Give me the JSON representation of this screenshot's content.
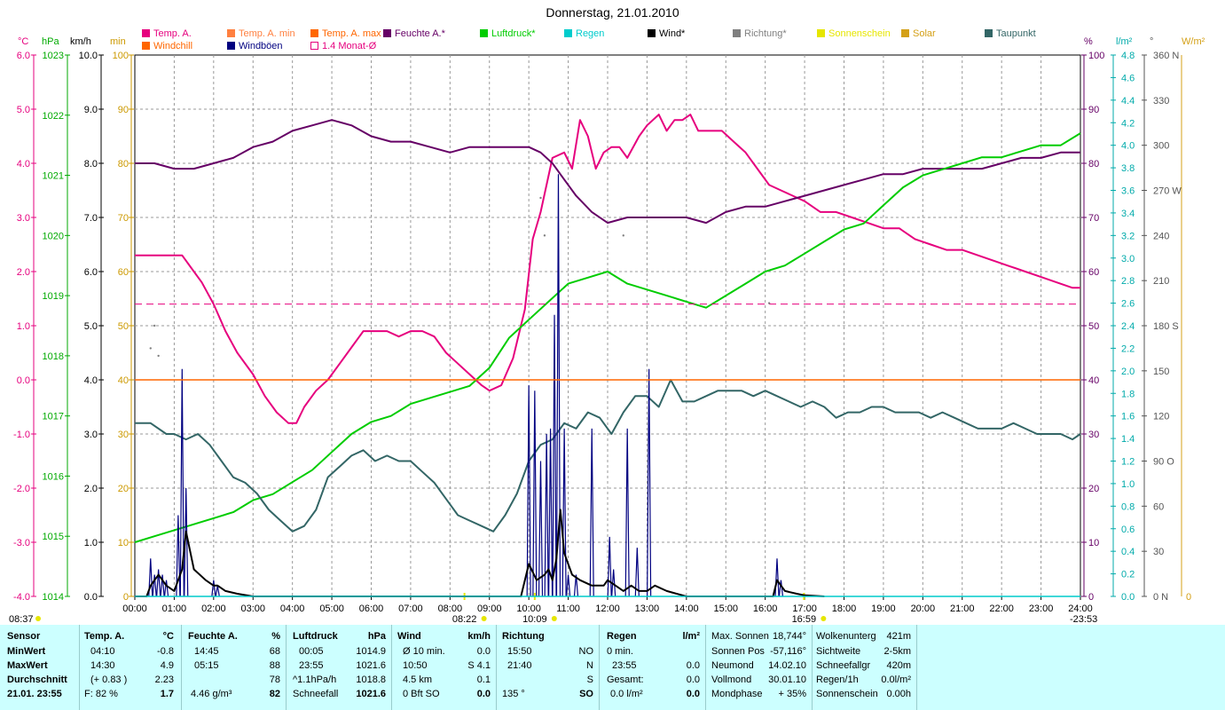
{
  "title": "Donnerstag, 21.01.2010",
  "units_top": {
    "celsius": "°C",
    "hpa": "hPa",
    "kmh": "km/h",
    "min": "min",
    "percent": "%",
    "lm2": "l/m²",
    "degree": "°",
    "wm2": "W/m²"
  },
  "legend": [
    {
      "label": "Temp. A.",
      "color": "#e6007e",
      "type": "fill"
    },
    {
      "label": "Windchill",
      "color": "#ff6600",
      "type": "fill"
    },
    {
      "label": "Temp. A. min",
      "color": "#ff8040",
      "type": "fill"
    },
    {
      "label": "Windböen",
      "color": "#000080",
      "type": "fill"
    },
    {
      "label": "Temp. A. max",
      "color": "#ff6600",
      "type": "fill"
    },
    {
      "label": "1.4 Monat-Ø",
      "color": "#e6007e",
      "type": "outline"
    },
    {
      "label": "Feuchte A.*",
      "color": "#660066",
      "type": "fill"
    },
    {
      "label": "Luftdruck*",
      "color": "#00cc00",
      "type": "fill"
    },
    {
      "label": "Regen",
      "color": "#00cccc",
      "type": "fill"
    },
    {
      "label": "Wind*",
      "color": "#000000",
      "type": "fill"
    },
    {
      "label": "Richtung*",
      "color": "#808080",
      "type": "fill"
    },
    {
      "label": "Sonnenschein",
      "color": "#e6e600",
      "type": "fill"
    },
    {
      "label": "Solar",
      "color": "#d4a017",
      "type": "fill"
    },
    {
      "label": "Taupunkt",
      "color": "#336666",
      "type": "fill"
    }
  ],
  "axes": {
    "temp_ticks": [
      "6.0",
      "5.0",
      "4.0",
      "3.0",
      "2.0",
      "1.0",
      "0.0",
      "-1.0",
      "-2.0",
      "-3.0",
      "-4.0"
    ],
    "hpa_ticks": [
      "1023",
      "1022",
      "1021",
      "1020",
      "1019",
      "1018",
      "1017",
      "1016",
      "1015",
      "1014"
    ],
    "kmh_ticks": [
      "10.0",
      "9.0",
      "8.0",
      "7.0",
      "6.0",
      "5.0",
      "4.0",
      "3.0",
      "2.0",
      "1.0",
      "0.0"
    ],
    "min_ticks": [
      "100",
      "90",
      "80",
      "70",
      "60",
      "50",
      "40",
      "30",
      "20",
      "10",
      "0"
    ],
    "pct_ticks": [
      "100",
      "90",
      "80",
      "70",
      "60",
      "50",
      "40",
      "30",
      "20",
      "10",
      "0"
    ],
    "rain_ticks": [
      "4.8",
      "4.6",
      "4.4",
      "4.2",
      "4.0",
      "3.8",
      "3.6",
      "3.4",
      "3.2",
      "3.0",
      "2.8",
      "2.6",
      "2.4",
      "2.2",
      "2.0",
      "1.8",
      "1.6",
      "1.4",
      "1.2",
      "1.0",
      "0.8",
      "0.6",
      "0.4",
      "0.2",
      "0.0"
    ],
    "dir_ticks": [
      "360 N",
      "330",
      "300",
      "270 W",
      "240",
      "210",
      "180 S",
      "150",
      "120",
      "90  O",
      "60",
      "30",
      "0   N"
    ],
    "solar_zero": "0",
    "x_ticks": [
      "00:00",
      "01:00",
      "02:00",
      "03:00",
      "04:00",
      "05:00",
      "06:00",
      "07:00",
      "08:00",
      "09:00",
      "10:00",
      "11:00",
      "12:00",
      "13:00",
      "14:00",
      "15:00",
      "16:00",
      "17:00",
      "18:00",
      "19:00",
      "20:00",
      "21:00",
      "22:00",
      "23:00",
      "24:00"
    ]
  },
  "sun_markers": {
    "sunrise_prev": "08:37",
    "sunrise": "08:22",
    "noon": "10:09",
    "sunset": "16:59",
    "end": "-23:53"
  },
  "chart_data": {
    "type": "line",
    "x_unit": "hours",
    "xlim": [
      0,
      24
    ],
    "series": [
      {
        "name": "Temp. A.",
        "axis": "°C",
        "ylim": [
          -4,
          6
        ],
        "color": "#e6007e",
        "x": [
          0,
          0.2,
          1.2,
          1.5,
          1.7,
          2.0,
          2.3,
          2.6,
          3.0,
          3.3,
          3.6,
          3.9,
          4.1,
          4.3,
          4.6,
          4.9,
          5.2,
          5.5,
          5.8,
          6.1,
          6.4,
          6.7,
          7.0,
          7.3,
          7.6,
          7.9,
          8.2,
          8.5,
          8.8,
          9.0,
          9.3,
          9.6,
          9.9,
          10.1,
          10.3,
          10.6,
          10.9,
          11.1,
          11.3,
          11.5,
          11.7,
          11.9,
          12.1,
          12.3,
          12.5,
          12.8,
          13.0,
          13.3,
          13.5,
          13.7,
          13.9,
          14.1,
          14.3,
          14.6,
          14.9,
          15.2,
          15.5,
          15.8,
          16.1,
          16.4,
          16.7,
          17.0,
          17.4,
          17.8,
          18.2,
          18.6,
          19.0,
          19.4,
          19.8,
          20.2,
          20.6,
          21.0,
          21.4,
          21.8,
          22.2,
          22.6,
          23.0,
          23.4,
          23.8,
          24
        ],
        "y": [
          2.3,
          2.3,
          2.3,
          2.0,
          1.8,
          1.4,
          0.9,
          0.5,
          0.1,
          -0.3,
          -0.6,
          -0.8,
          -0.8,
          -0.5,
          -0.2,
          0.0,
          0.3,
          0.6,
          0.9,
          0.9,
          0.9,
          0.8,
          0.9,
          0.9,
          0.8,
          0.5,
          0.3,
          0.1,
          -0.1,
          -0.2,
          -0.1,
          0.4,
          1.3,
          2.6,
          3.1,
          4.1,
          4.2,
          3.9,
          4.8,
          4.5,
          3.9,
          4.2,
          4.3,
          4.3,
          4.1,
          4.5,
          4.7,
          4.9,
          4.6,
          4.8,
          4.8,
          4.9,
          4.6,
          4.6,
          4.6,
          4.4,
          4.2,
          3.9,
          3.6,
          3.5,
          3.4,
          3.3,
          3.1,
          3.1,
          3.0,
          2.9,
          2.8,
          2.8,
          2.6,
          2.5,
          2.4,
          2.4,
          2.3,
          2.2,
          2.1,
          2.0,
          1.9,
          1.8,
          1.7,
          1.7
        ]
      },
      {
        "name": "Feuchte A.*",
        "axis": "%",
        "ylim": [
          0,
          100
        ],
        "color": "#660066",
        "x": [
          0,
          0.5,
          1,
          1.5,
          2,
          2.5,
          3,
          3.5,
          4,
          4.5,
          5,
          5.5,
          6,
          6.5,
          7,
          7.5,
          8,
          8.5,
          9,
          9.5,
          10,
          10.3,
          10.6,
          10.9,
          11.2,
          11.6,
          12,
          12.5,
          13,
          13.5,
          14,
          14.5,
          15,
          15.5,
          16,
          16.5,
          17,
          17.5,
          18,
          18.5,
          19,
          19.5,
          20,
          20.5,
          21,
          21.5,
          22,
          22.5,
          23,
          23.5,
          24
        ],
        "y": [
          80,
          80,
          79,
          79,
          80,
          81,
          83,
          84,
          86,
          87,
          88,
          87,
          85,
          84,
          84,
          83,
          82,
          83,
          83,
          83,
          83,
          82,
          80,
          77,
          74,
          71,
          69,
          70,
          70,
          70,
          70,
          69,
          71,
          72,
          72,
          73,
          74,
          75,
          76,
          77,
          78,
          78,
          79,
          79,
          79,
          79,
          80,
          81,
          81,
          82,
          82
        ]
      },
      {
        "name": "Luftdruck*",
        "axis": "hPa",
        "ylim": [
          1014,
          1023
        ],
        "color": "#00cc00",
        "x": [
          0,
          0.5,
          1,
          1.5,
          2,
          2.5,
          3,
          3.5,
          4,
          4.5,
          5,
          5.5,
          6,
          6.5,
          7,
          7.5,
          8,
          8.5,
          9,
          9.5,
          10,
          10.5,
          11,
          11.5,
          12,
          12.5,
          13,
          13.5,
          14,
          14.5,
          15,
          15.5,
          16,
          16.5,
          17,
          17.5,
          18,
          18.5,
          19,
          19.5,
          20,
          20.5,
          21,
          21.5,
          22,
          22.5,
          23,
          23.5,
          24
        ],
        "y": [
          1014.9,
          1015.0,
          1015.1,
          1015.2,
          1015.3,
          1015.4,
          1015.6,
          1015.7,
          1015.9,
          1016.1,
          1016.4,
          1016.7,
          1016.9,
          1017.0,
          1017.2,
          1017.3,
          1017.4,
          1017.5,
          1017.8,
          1018.3,
          1018.6,
          1018.9,
          1019.2,
          1019.3,
          1019.4,
          1019.2,
          1019.1,
          1019.0,
          1018.9,
          1018.8,
          1019.0,
          1019.2,
          1019.4,
          1019.5,
          1019.7,
          1019.9,
          1020.1,
          1020.2,
          1020.5,
          1020.8,
          1021.0,
          1021.1,
          1021.2,
          1021.3,
          1021.3,
          1021.4,
          1021.5,
          1021.5,
          1021.7
        ]
      },
      {
        "name": "Taupunkt",
        "axis": "°C",
        "ylim": [
          -4,
          6
        ],
        "color": "#336666",
        "x": [
          0,
          0.4,
          0.8,
          1.0,
          1.3,
          1.6,
          1.9,
          2.2,
          2.5,
          2.8,
          3.1,
          3.4,
          3.7,
          4.0,
          4.3,
          4.6,
          4.9,
          5.2,
          5.5,
          5.8,
          6.1,
          6.4,
          6.7,
          7.0,
          7.3,
          7.6,
          7.9,
          8.2,
          8.5,
          8.8,
          9.1,
          9.4,
          9.7,
          10.0,
          10.3,
          10.6,
          10.9,
          11.2,
          11.5,
          11.8,
          12.1,
          12.4,
          12.7,
          13.0,
          13.3,
          13.6,
          13.9,
          14.2,
          14.5,
          14.8,
          15.1,
          15.4,
          15.7,
          16.0,
          16.3,
          16.6,
          16.9,
          17.2,
          17.5,
          17.8,
          18.1,
          18.4,
          18.7,
          19.0,
          19.3,
          19.6,
          19.9,
          20.2,
          20.5,
          20.8,
          21.1,
          21.4,
          21.7,
          22.0,
          22.3,
          22.6,
          22.9,
          23.2,
          23.5,
          23.8,
          24
        ],
        "y": [
          -0.8,
          -0.8,
          -1.0,
          -1.0,
          -1.1,
          -1.0,
          -1.2,
          -1.5,
          -1.8,
          -1.9,
          -2.1,
          -2.4,
          -2.6,
          -2.8,
          -2.7,
          -2.4,
          -1.8,
          -1.6,
          -1.4,
          -1.3,
          -1.5,
          -1.4,
          -1.5,
          -1.5,
          -1.7,
          -1.9,
          -2.2,
          -2.5,
          -2.6,
          -2.7,
          -2.8,
          -2.5,
          -2.1,
          -1.5,
          -1.2,
          -1.1,
          -0.8,
          -0.9,
          -0.6,
          -0.7,
          -1.0,
          -0.6,
          -0.3,
          -0.3,
          -0.5,
          0.0,
          -0.4,
          -0.4,
          -0.3,
          -0.2,
          -0.2,
          -0.2,
          -0.3,
          -0.2,
          -0.3,
          -0.4,
          -0.5,
          -0.4,
          -0.5,
          -0.7,
          -0.6,
          -0.6,
          -0.5,
          -0.5,
          -0.6,
          -0.6,
          -0.6,
          -0.7,
          -0.6,
          -0.7,
          -0.8,
          -0.9,
          -0.9,
          -0.9,
          -0.8,
          -0.9,
          -1.0,
          -1.0,
          -1.0,
          -1.1,
          -1.0
        ]
      },
      {
        "name": "Windböen",
        "axis": "km/h",
        "ylim": [
          0,
          10
        ],
        "color": "#000080",
        "style": "spikes",
        "x": [
          0.4,
          0.5,
          0.6,
          0.7,
          0.8,
          1.1,
          1.2,
          1.3,
          2.0,
          2.1,
          10.0,
          10.15,
          10.3,
          10.45,
          10.55,
          10.65,
          10.75,
          10.9,
          11.0,
          11.2,
          11.6,
          12.05,
          12.15,
          12.5,
          12.75,
          13.05,
          16.3,
          16.4
        ],
        "y": [
          0.7,
          0.4,
          0.5,
          0.4,
          0.3,
          1.5,
          4.2,
          2.0,
          0.3,
          0.2,
          3.9,
          3.8,
          2.5,
          3.0,
          3.1,
          5.2,
          7.8,
          3.1,
          0.4,
          0.4,
          3.1,
          1.1,
          0.5,
          3.1,
          0.9,
          4.2,
          0.7,
          0.3
        ]
      },
      {
        "name": "Wind*",
        "axis": "km/h",
        "ylim": [
          0,
          10
        ],
        "color": "#000000",
        "x": [
          0,
          0.3,
          0.4,
          0.5,
          0.6,
          0.7,
          0.8,
          1.0,
          1.2,
          1.3,
          1.5,
          1.8,
          2.0,
          2.1,
          2.3,
          2.6,
          3.0,
          9.8,
          10.0,
          10.2,
          10.4,
          10.5,
          10.6,
          10.7,
          10.8,
          10.9,
          11.1,
          11.3,
          11.6,
          11.9,
          12.0,
          12.2,
          12.4,
          12.6,
          12.8,
          13.0,
          13.2,
          13.5,
          14.0,
          16.2,
          16.3,
          16.4,
          16.5,
          16.8,
          17.0,
          17.5
        ],
        "y": [
          0,
          0,
          0.2,
          0.3,
          0.4,
          0.3,
          0.2,
          0.1,
          0.5,
          1.2,
          0.5,
          0.3,
          0.2,
          0.2,
          0.1,
          0.05,
          0,
          0,
          0.6,
          0.3,
          0.4,
          0.5,
          0.3,
          0.7,
          1.6,
          0.8,
          0.4,
          0.3,
          0.2,
          0.2,
          0.3,
          0.2,
          0.1,
          0.2,
          0.1,
          0.1,
          0.2,
          0.1,
          0.0,
          0.0,
          0.3,
          0.2,
          0.1,
          0.05,
          0.02,
          0
        ]
      },
      {
        "name": "1.4 Monat-Ø",
        "axis": "°C",
        "ylim": [
          -4,
          6
        ],
        "color": "#e6007e",
        "style": "dashed",
        "x": [
          0,
          24
        ],
        "y": [
          1.4,
          1.4
        ]
      },
      {
        "name": "Windchill",
        "axis": "°C",
        "ylim": [
          -4,
          6
        ],
        "color": "#ff6600",
        "x": [
          0,
          24
        ],
        "y": [
          0.0,
          0.0
        ]
      },
      {
        "name": "Regen",
        "axis": "l/m²",
        "ylim": [
          0,
          4.8
        ],
        "color": "#00cccc",
        "x": [
          0,
          24
        ],
        "y": [
          0.0,
          0.0
        ]
      },
      {
        "name": "Richtung*",
        "axis": "°",
        "ylim": [
          0,
          360
        ],
        "color": "#808080",
        "style": "dots",
        "x": [
          0.4,
          0.5,
          0.6,
          10.3,
          10.4,
          12.4,
          16.1
        ],
        "y": [
          165,
          180,
          160,
          265,
          240,
          240,
          195
        ]
      }
    ]
  },
  "footer": {
    "col1": {
      "r0": "Sensor",
      "r1": "MinWert",
      "r2": "MaxWert",
      "r3": "Durchschnitt",
      "r4": "21.01. 23:55"
    },
    "col2": {
      "h1": "Temp. A.",
      "h2": "°C",
      "r1a": "04:10",
      "r1b": "-0.8",
      "r2a": "14:30",
      "r2b": "4.9",
      "r3a": "(+ 0.83 )",
      "r3b": "2.23",
      "r4a": "F: 82 %",
      "r4b": "1.7"
    },
    "col3": {
      "h1": "Feuchte A.",
      "h2": "%",
      "r1a": "14:45",
      "r1b": "68",
      "r2a": "05:15",
      "r2b": "88",
      "r3b": "78",
      "r4a": "4.46 g/m³",
      "r4b": "82"
    },
    "col4": {
      "h1": "Luftdruck",
      "h2": "hPa",
      "r1a": "00:05",
      "r1b": "1014.9",
      "r2a": "23:55",
      "r2b": "1021.6",
      "r3a": "^1.1hPa/h",
      "r3b": "1018.8",
      "r4a": "Schneefall",
      "r4b": "1021.6"
    },
    "col5": {
      "h1": "Wind",
      "h2": "km/h",
      "r1a": "Ø 10 min.",
      "r1b": "0.0",
      "r2a": "10:50",
      "r2b": "S 4.1",
      "r3a": "4.5 km",
      "r3b": "0.1",
      "r4a": "0 Bft SO",
      "r4b": "0.0"
    },
    "col6": {
      "h1": "Richtung",
      "r1a": "15:50",
      "r1b": "NO",
      "r2a": "21:40",
      "r2b": "N",
      "r3b": "S",
      "r4a": "135 °",
      "r4b": "SO"
    },
    "col7": {
      "h1": "Regen",
      "h2": "l/m²",
      "r1a": "0 min.",
      "r2a": "23:55",
      "r2b": "0.0",
      "r3a": "Gesamt:",
      "r3b": "0.0",
      "r4a": "0.0 l/m²",
      "r4b": "0.0"
    },
    "col8": {
      "r0a": "Max. Sonnen",
      "r0b": "18,744°",
      "r1a": "Sonnen Pos",
      "r1b": "-57,116°",
      "r2a": "Neumond",
      "r2b": "14.02.10",
      "r3a": "Vollmond",
      "r3b": "30.01.10",
      "r4a": "Mondphase",
      "r4b": "+ 35%"
    },
    "col9": {
      "r0a": "Wolkenunterg",
      "r0b": "421m",
      "r1a": "Sichtweite",
      "r1b": "2-5km",
      "r2a": "Schneefallgr",
      "r2b": "420m",
      "r3a": "Regen/1h",
      "r3b": "0.0l/m²",
      "r4a": "Sonnenschein",
      "r4b": "0.00h"
    }
  }
}
